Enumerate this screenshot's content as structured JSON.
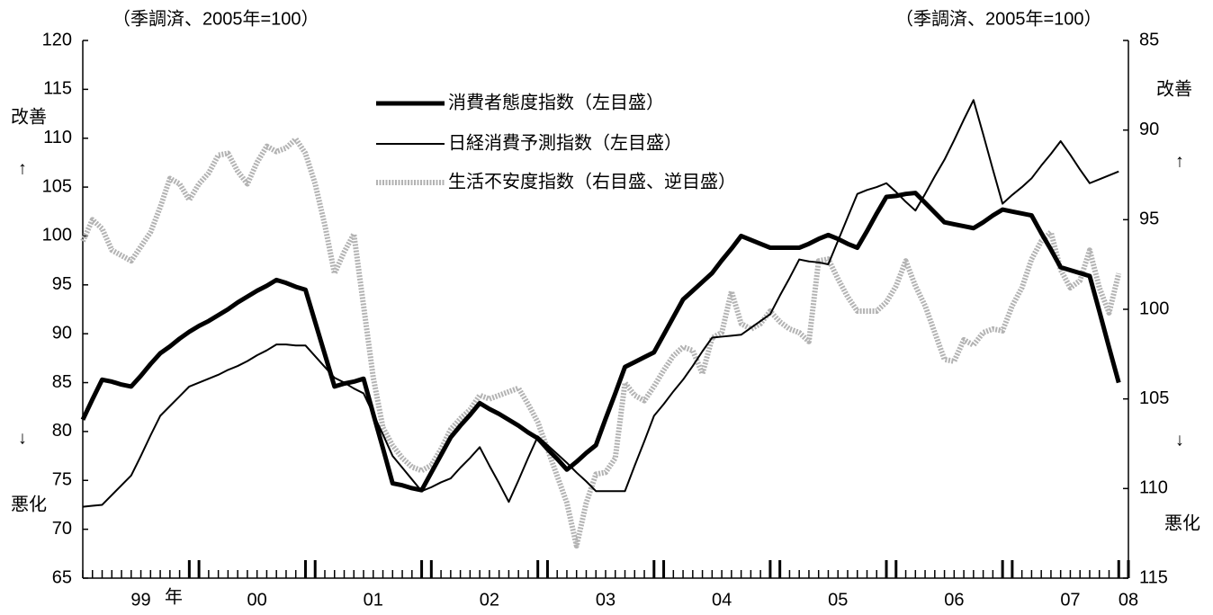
{
  "chart_data": {
    "type": "line",
    "y_unit_label": "（季調済、2005年=100）",
    "y2_unit_label": "（季調済、2005年=100）",
    "y_up_label": "改善",
    "y_up_arrow": "↑",
    "y_down_arrow": "↓",
    "y_down_label": "悪化",
    "y2_up_label": "改善",
    "y2_up_arrow": "↑",
    "y2_down_arrow": "↓",
    "y2_down_label": "悪化",
    "x_unit_label": "年",
    "categories": [
      null,
      null,
      null,
      null,
      null,
      null,
      "99",
      null,
      null,
      null,
      null,
      null,
      null,
      null,
      null,
      null,
      null,
      null,
      "00",
      null,
      null,
      null,
      null,
      null,
      null,
      null,
      null,
      null,
      null,
      null,
      "01",
      null,
      null,
      null,
      null,
      null,
      null,
      null,
      null,
      null,
      null,
      null,
      "02",
      null,
      null,
      null,
      null,
      null,
      null,
      null,
      null,
      null,
      null,
      null,
      "03",
      null,
      null,
      null,
      null,
      null,
      null,
      null,
      null,
      null,
      null,
      null,
      "04",
      null,
      null,
      null,
      null,
      null,
      null,
      null,
      null,
      null,
      null,
      null,
      "05",
      null,
      null,
      null,
      null,
      null,
      null,
      null,
      null,
      null,
      null,
      null,
      "06",
      null,
      null,
      null,
      null,
      null,
      null,
      null,
      null,
      null,
      null,
      null,
      "07",
      null,
      null,
      null,
      null,
      null,
      "08"
    ],
    "ylim": [
      65,
      120
    ],
    "yticks": [
      65,
      70,
      75,
      80,
      85,
      90,
      95,
      100,
      105,
      110,
      115,
      120
    ],
    "y2lim": [
      85,
      115
    ],
    "y2ticks": [
      85,
      90,
      95,
      100,
      105,
      110,
      115
    ],
    "y2_reversed": true,
    "grid": false,
    "series": [
      {
        "name": "消費者態度指数（左目盛）",
        "color": "#000000",
        "values": [
          81.2,
          83.3,
          85.3,
          85.1,
          84.8,
          84.6,
          85.7,
          86.9,
          88.0,
          88.7,
          89.5,
          90.2,
          90.8,
          91.3,
          91.9,
          92.5,
          93.2,
          93.8,
          94.4,
          94.9,
          95.5,
          95.2,
          94.8,
          94.5,
          91.2,
          87.9,
          84.6,
          84.9,
          85.1,
          85.4,
          81.8,
          78.3,
          74.7,
          74.5,
          74.2,
          74.0,
          75.8,
          77.6,
          79.4,
          80.6,
          81.7,
          82.9,
          82.3,
          81.8,
          81.2,
          80.6,
          79.9,
          79.3,
          78.2,
          77.2,
          76.1,
          76.9,
          77.8,
          78.6,
          81.3,
          83.9,
          86.6,
          87.1,
          87.6,
          88.1,
          89.9,
          91.7,
          93.5,
          94.4,
          95.3,
          96.2,
          97.5,
          98.7,
          100.0,
          99.6,
          99.2,
          98.8,
          98.8,
          98.8,
          98.8,
          99.2,
          99.7,
          100.1,
          99.7,
          99.2,
          98.8,
          100.5,
          102.3,
          104.0,
          104.1,
          104.3,
          104.4,
          103.4,
          102.4,
          101.4,
          101.2,
          101.0,
          100.8,
          101.4,
          102.1,
          102.7,
          102.5,
          102.3,
          102.1,
          100.3,
          98.6,
          96.8,
          96.5,
          96.2,
          95.9,
          92.3,
          88.6,
          85.0,
          null
        ]
      },
      {
        "name": "日経消費予測指数（左目盛）",
        "color": "#000000",
        "values": [
          72.3,
          72.4,
          72.5,
          73.5,
          74.5,
          75.5,
          77.5,
          79.6,
          81.6,
          82.6,
          83.6,
          84.6,
          85.0,
          85.4,
          85.8,
          86.3,
          86.7,
          87.2,
          87.8,
          88.3,
          88.9,
          88.9,
          88.8,
          88.8,
          87.7,
          86.6,
          85.5,
          85.0,
          84.4,
          83.9,
          81.8,
          79.7,
          77.5,
          76.3,
          75.1,
          73.9,
          74.3,
          74.8,
          75.2,
          76.3,
          77.3,
          78.4,
          76.5,
          74.7,
          72.8,
          75.0,
          77.3,
          79.5,
          78.6,
          77.7,
          76.8,
          75.8,
          74.9,
          73.9,
          73.9,
          73.9,
          73.9,
          76.5,
          79.0,
          81.6,
          82.8,
          84.1,
          85.3,
          86.7,
          88.2,
          89.6,
          89.7,
          89.8,
          89.9,
          90.6,
          91.3,
          92.0,
          93.9,
          95.7,
          97.6,
          97.4,
          97.3,
          97.1,
          99.5,
          101.9,
          104.3,
          104.7,
          105.0,
          105.4,
          104.5,
          103.5,
          102.6,
          104.3,
          106.1,
          107.8,
          109.8,
          111.9,
          113.9,
          110.4,
          106.8,
          103.3,
          104.2,
          105.0,
          105.9,
          107.2,
          108.4,
          109.7,
          108.3,
          106.8,
          105.4,
          105.8,
          106.2,
          106.6,
          null
        ]
      },
      {
        "name": "生活不安度指数（右目盛、逆目盛）",
        "color": "#b3b3b3",
        "axis": "y2",
        "values": [
          96.2,
          95.0,
          95.5,
          96.7,
          97.0,
          97.3,
          96.5,
          95.7,
          94.3,
          92.7,
          93.0,
          93.9,
          93.0,
          92.4,
          91.4,
          91.3,
          92.3,
          93.0,
          91.8,
          90.9,
          91.2,
          91.0,
          90.5,
          91.3,
          93.0,
          95.3,
          98.0,
          96.8,
          95.8,
          99.8,
          103.8,
          106.6,
          107.6,
          108.3,
          108.8,
          109.0,
          108.7,
          107.8,
          106.7,
          106.1,
          105.6,
          104.8,
          105.0,
          104.8,
          104.6,
          104.4,
          105.3,
          106.3,
          107.8,
          109.3,
          110.8,
          113.2,
          110.8,
          109.2,
          109.1,
          108.3,
          104.1,
          104.8,
          105.1,
          104.3,
          103.4,
          102.6,
          102.1,
          102.3,
          103.6,
          101.6,
          101.3,
          99.0,
          100.8,
          101.1,
          100.8,
          100.1,
          100.7,
          101.1,
          101.3,
          101.8,
          97.3,
          97.2,
          98.3,
          99.3,
          100.1,
          100.1,
          100.1,
          99.6,
          98.7,
          97.3,
          98.7,
          99.8,
          101.3,
          102.8,
          102.9,
          101.7,
          102.0,
          101.3,
          101.1,
          101.2,
          99.8,
          98.8,
          97.2,
          96.2,
          95.7,
          97.8,
          98.8,
          98.4,
          96.7,
          98.8,
          100.2,
          98.0,
          null
        ]
      }
    ]
  }
}
